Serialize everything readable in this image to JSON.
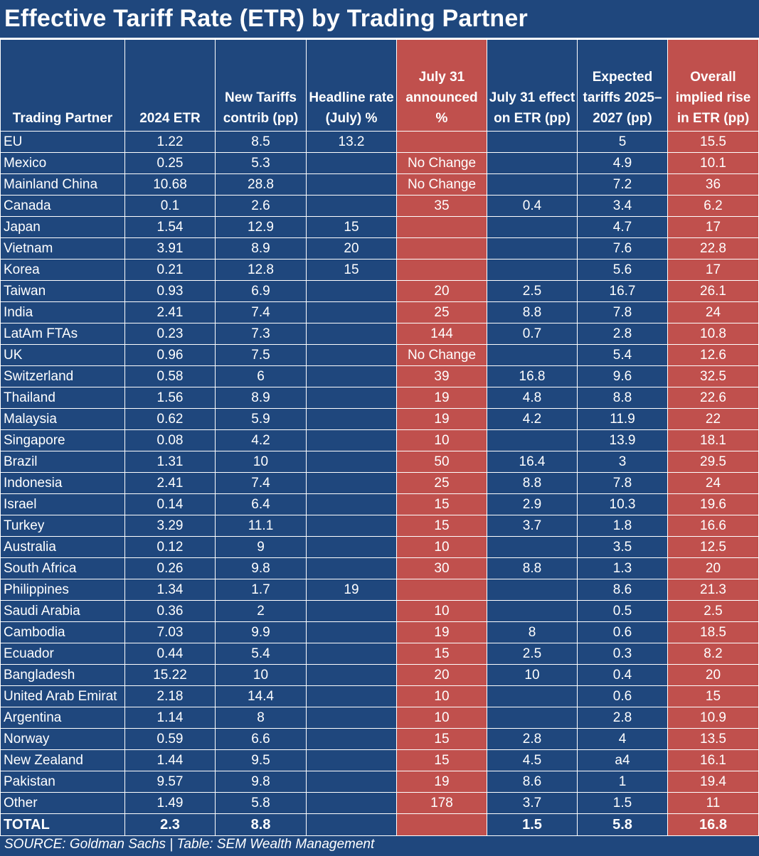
{
  "title": "Effective Tariff Rate (ETR) by Trading Partner",
  "colors": {
    "background": "#1f477d",
    "highlight": "#c0504d",
    "text": "#ffffff"
  },
  "headers": [
    "Trading Partner",
    "2024 ETR",
    "New Tariffs contrib (pp)",
    "Headline rate (July) %",
    "July 31 announced %",
    "July 31 effect on ETR (pp)",
    "Expected tariffs 2025–2027 (pp)",
    "Overall implied rise in ETR (pp)"
  ],
  "rows": [
    [
      "EU",
      "1.22",
      "8.5",
      "13.2",
      "",
      "",
      "5",
      "15.5"
    ],
    [
      "Mexico",
      "0.25",
      "5.3",
      "",
      "No Change",
      "",
      "4.9",
      "10.1"
    ],
    [
      "Mainland China",
      "10.68",
      "28.8",
      "",
      "No Change",
      "",
      "7.2",
      "36"
    ],
    [
      "Canada",
      "0.1",
      "2.6",
      "",
      "35",
      "0.4",
      "3.4",
      "6.2"
    ],
    [
      "Japan",
      "1.54",
      "12.9",
      "15",
      "",
      "",
      "4.7",
      "17"
    ],
    [
      "Vietnam",
      "3.91",
      "8.9",
      "20",
      "",
      "",
      "7.6",
      "22.8"
    ],
    [
      "Korea",
      "0.21",
      "12.8",
      "15",
      "",
      "",
      "5.6",
      "17"
    ],
    [
      "Taiwan",
      "0.93",
      "6.9",
      "",
      "20",
      "2.5",
      "16.7",
      "26.1"
    ],
    [
      "India",
      "2.41",
      "7.4",
      "",
      "25",
      "8.8",
      "7.8",
      "24"
    ],
    [
      "LatAm FTAs",
      "0.23",
      "7.3",
      "",
      "144",
      "0.7",
      "2.8",
      "10.8"
    ],
    [
      "UK",
      "0.96",
      "7.5",
      "",
      "No Change",
      "",
      "5.4",
      "12.6"
    ],
    [
      "Switzerland",
      "0.58",
      "6",
      "",
      "39",
      "16.8",
      "9.6",
      "32.5"
    ],
    [
      "Thailand",
      "1.56",
      "8.9",
      "",
      "19",
      "4.8",
      "8.8",
      "22.6"
    ],
    [
      "Malaysia",
      "0.62",
      "5.9",
      "",
      "19",
      "4.2",
      "11.9",
      "22"
    ],
    [
      "Singapore",
      "0.08",
      "4.2",
      "",
      "10",
      "",
      "13.9",
      "18.1"
    ],
    [
      "Brazil",
      "1.31",
      "10",
      "",
      "50",
      "16.4",
      "3",
      "29.5"
    ],
    [
      "Indonesia",
      "2.41",
      "7.4",
      "",
      "25",
      "8.8",
      "7.8",
      "24"
    ],
    [
      "Israel",
      "0.14",
      "6.4",
      "",
      "15",
      "2.9",
      "10.3",
      "19.6"
    ],
    [
      "Turkey",
      "3.29",
      "11.1",
      "",
      "15",
      "3.7",
      "1.8",
      "16.6"
    ],
    [
      "Australia",
      "0.12",
      "9",
      "",
      "10",
      "",
      "3.5",
      "12.5"
    ],
    [
      "South Africa",
      "0.26",
      "9.8",
      "",
      "30",
      "8.8",
      "1.3",
      "20"
    ],
    [
      "Philippines",
      "1.34",
      "1.7",
      "19",
      "",
      "",
      "8.6",
      "21.3"
    ],
    [
      "Saudi Arabia",
      "0.36",
      "2",
      "",
      "10",
      "",
      "0.5",
      "2.5"
    ],
    [
      "Cambodia",
      "7.03",
      "9.9",
      "",
      "19",
      "8",
      "0.6",
      "18.5"
    ],
    [
      "Ecuador",
      "0.44",
      "5.4",
      "",
      "15",
      "2.5",
      "0.3",
      "8.2"
    ],
    [
      "Bangladesh",
      "15.22",
      "10",
      "",
      "20",
      "10",
      "0.4",
      "20"
    ],
    [
      "United Arab Emirat",
      "2.18",
      "14.4",
      "",
      "10",
      "",
      "0.6",
      "15"
    ],
    [
      "Argentina",
      "1.14",
      "8",
      "",
      "10",
      "",
      "2.8",
      "10.9"
    ],
    [
      "Norway",
      "0.59",
      "6.6",
      "",
      "15",
      "2.8",
      "4",
      "13.5"
    ],
    [
      "New Zealand",
      "1.44",
      "9.5",
      "",
      "15",
      "4.5",
      "a4",
      "16.1"
    ],
    [
      "Pakistan",
      "9.57",
      "9.8",
      "",
      "19",
      "8.6",
      "1",
      "19.4"
    ],
    [
      "Other",
      "1.49",
      "5.8",
      "",
      "178",
      "3.7",
      "1.5",
      "11"
    ]
  ],
  "total": [
    "TOTAL",
    "2.3",
    "8.8",
    "",
    "",
    "1.5",
    "5.8",
    "16.8"
  ],
  "source": "SOURCE: Goldman Sachs | Table: SEM Wealth Management"
}
